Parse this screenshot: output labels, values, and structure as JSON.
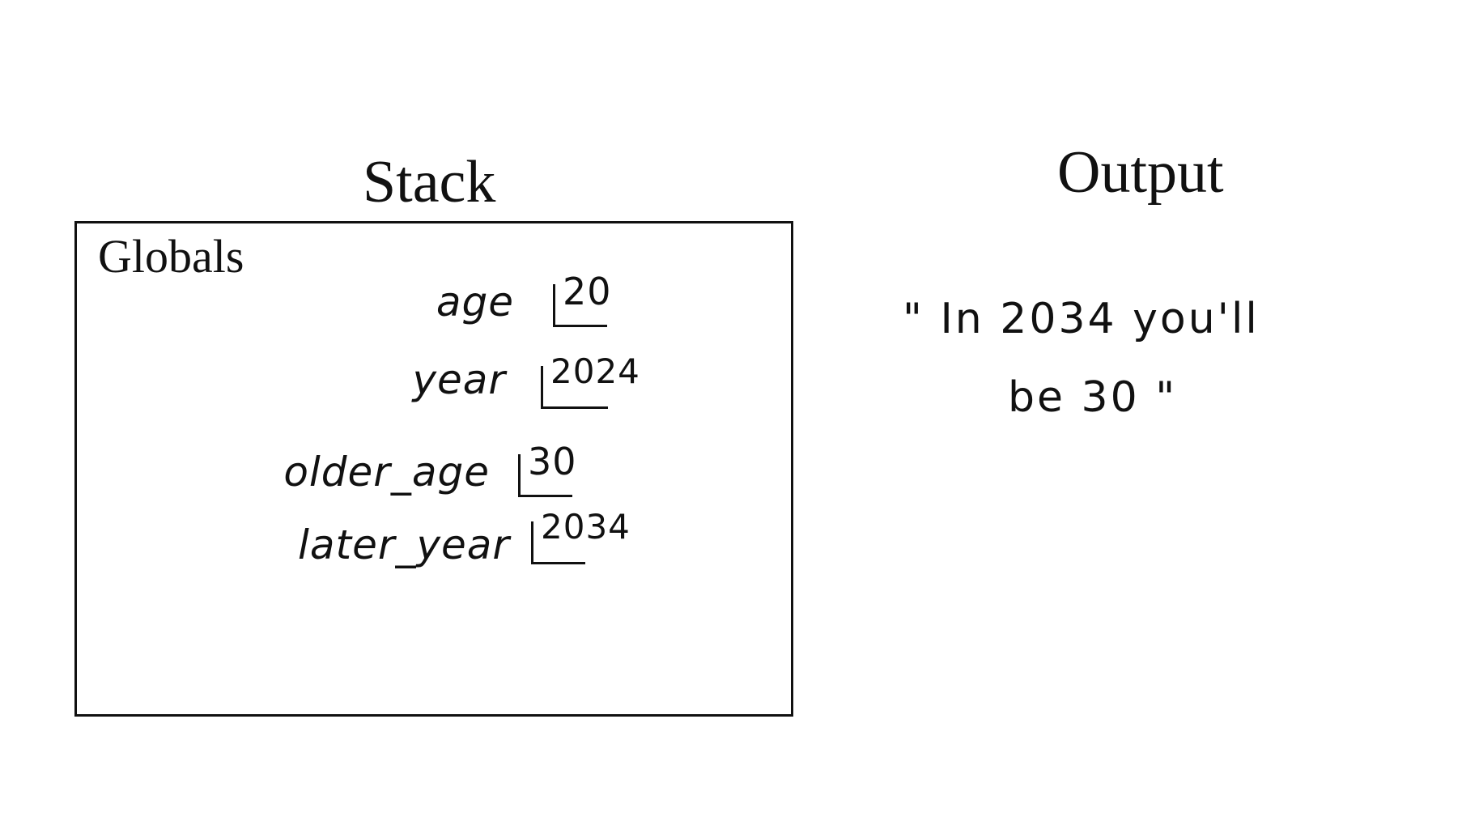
{
  "titles": {
    "stack": "Stack",
    "output": "Output"
  },
  "frame": {
    "label": "Globals",
    "variables": [
      {
        "name": "age",
        "value": "20"
      },
      {
        "name": "year",
        "value": "2024"
      },
      {
        "name": "older_age",
        "value": "30"
      },
      {
        "name": "later_year",
        "value": "2034"
      }
    ]
  },
  "output": {
    "lines": [
      "\" In 2034 you'll",
      "be 30 \""
    ]
  }
}
